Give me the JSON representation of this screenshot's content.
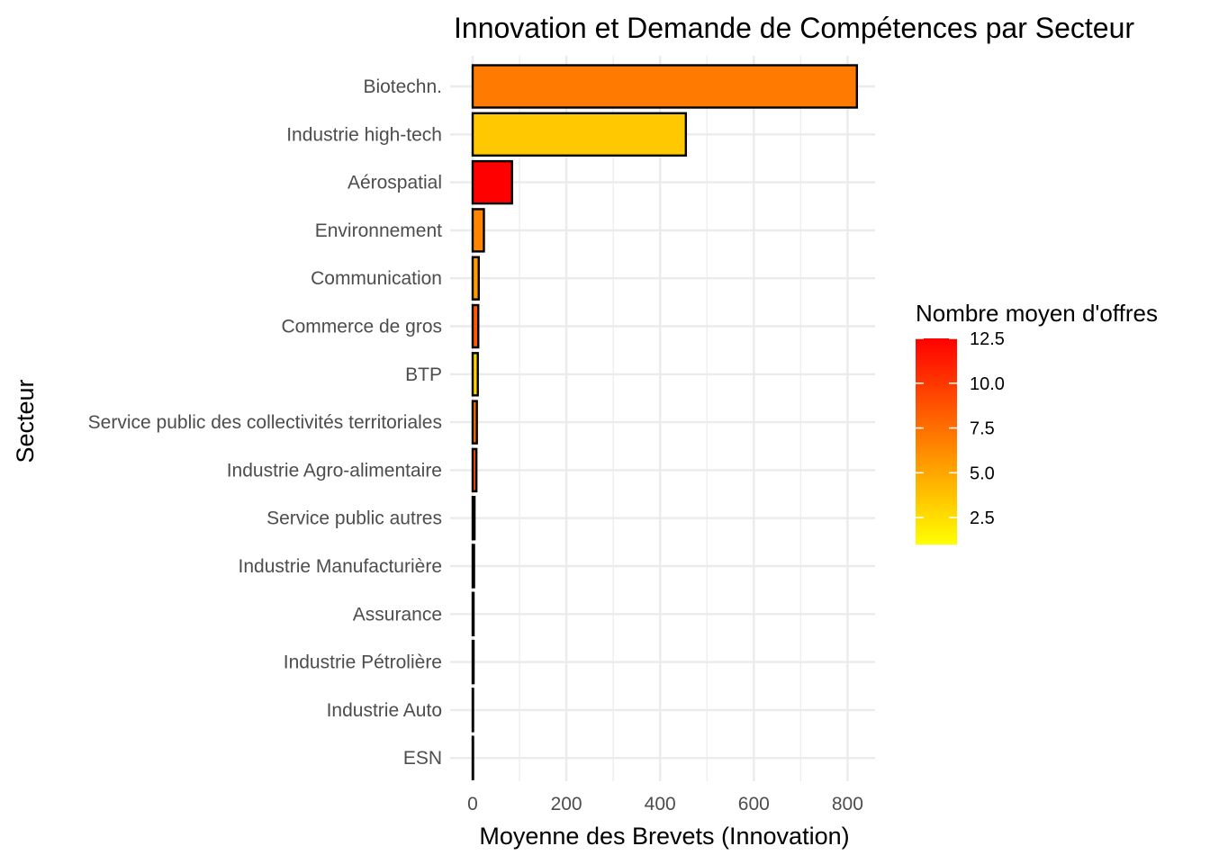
{
  "chart_data": {
    "type": "bar",
    "orientation": "horizontal",
    "title": "Innovation et Demande de Compétences par Secteur",
    "xlabel": "Moyenne des Brevets (Innovation)",
    "ylabel": "Secteur",
    "xlim": [
      0,
      860
    ],
    "xticks": [
      0,
      200,
      400,
      600,
      800
    ],
    "xtick_labels": [
      "0",
      "200",
      "400",
      "600",
      "800"
    ],
    "grid": true,
    "categories": [
      "Biotechn.",
      "Industrie high-tech",
      "Aérospatial",
      "Environnement",
      "Communication",
      "Commerce de gros",
      "BTP",
      "Service public des collectivités territoriales",
      "Industrie Agro-alimentaire",
      "Service public autres",
      "Industrie Manufacturière",
      "Assurance",
      "Industrie Pétrolière",
      "Industrie Auto",
      "ESN"
    ],
    "values": [
      820,
      455,
      84,
      24,
      13,
      12,
      11,
      9,
      8,
      4,
      3,
      2,
      2,
      1,
      1
    ],
    "fill_values": [
      7.0,
      3.5,
      12.5,
      6.5,
      5.5,
      8.5,
      3.0,
      7.5,
      9.0,
      6.0,
      6.0,
      6.0,
      6.0,
      6.0,
      6.0
    ],
    "bar_outline_color": "#000000",
    "legend": {
      "title": "Nombre moyen d'offres",
      "placement": "right",
      "range": [
        1,
        12.5
      ],
      "ticks": [
        2.5,
        5.0,
        7.5,
        10.0,
        12.5
      ],
      "tick_labels": [
        "2.5",
        "5.0",
        "7.5",
        "10.0",
        "12.5"
      ],
      "low_color": "#ffff00",
      "high_color": "#ff0000"
    }
  }
}
